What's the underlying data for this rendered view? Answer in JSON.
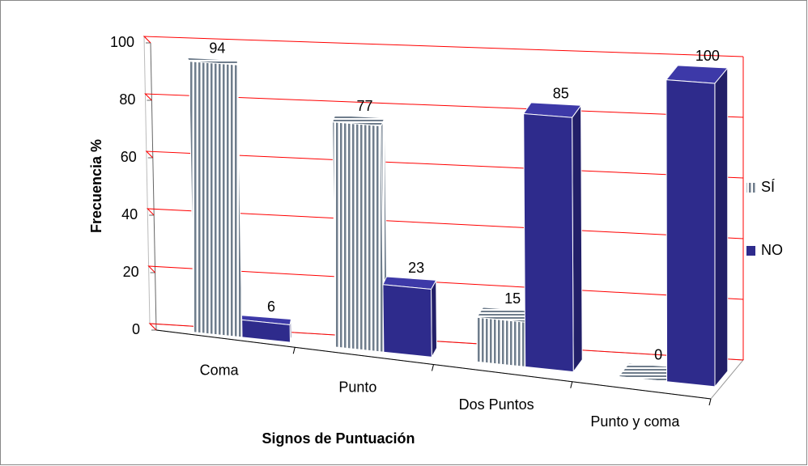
{
  "chart_data": {
    "type": "bar3d",
    "x_label": "Signos de Puntuación",
    "y_label": "Frecuencia %",
    "categories": [
      "Coma",
      "Punto",
      "Dos Puntos",
      "Punto y coma"
    ],
    "series": [
      {
        "name": "SÍ",
        "color": "#6f7d8c",
        "pattern": "vertical-stripes",
        "values": [
          94,
          77,
          15,
          0
        ]
      },
      {
        "name": "NO",
        "color": "#2e2b8c",
        "values": [
          6,
          23,
          85,
          100
        ]
      }
    ],
    "ylim": [
      0,
      100
    ],
    "yticks": [
      0,
      20,
      40,
      60,
      80,
      100
    ],
    "grid": true,
    "grid_color": "#ff0000",
    "legend": "right"
  }
}
